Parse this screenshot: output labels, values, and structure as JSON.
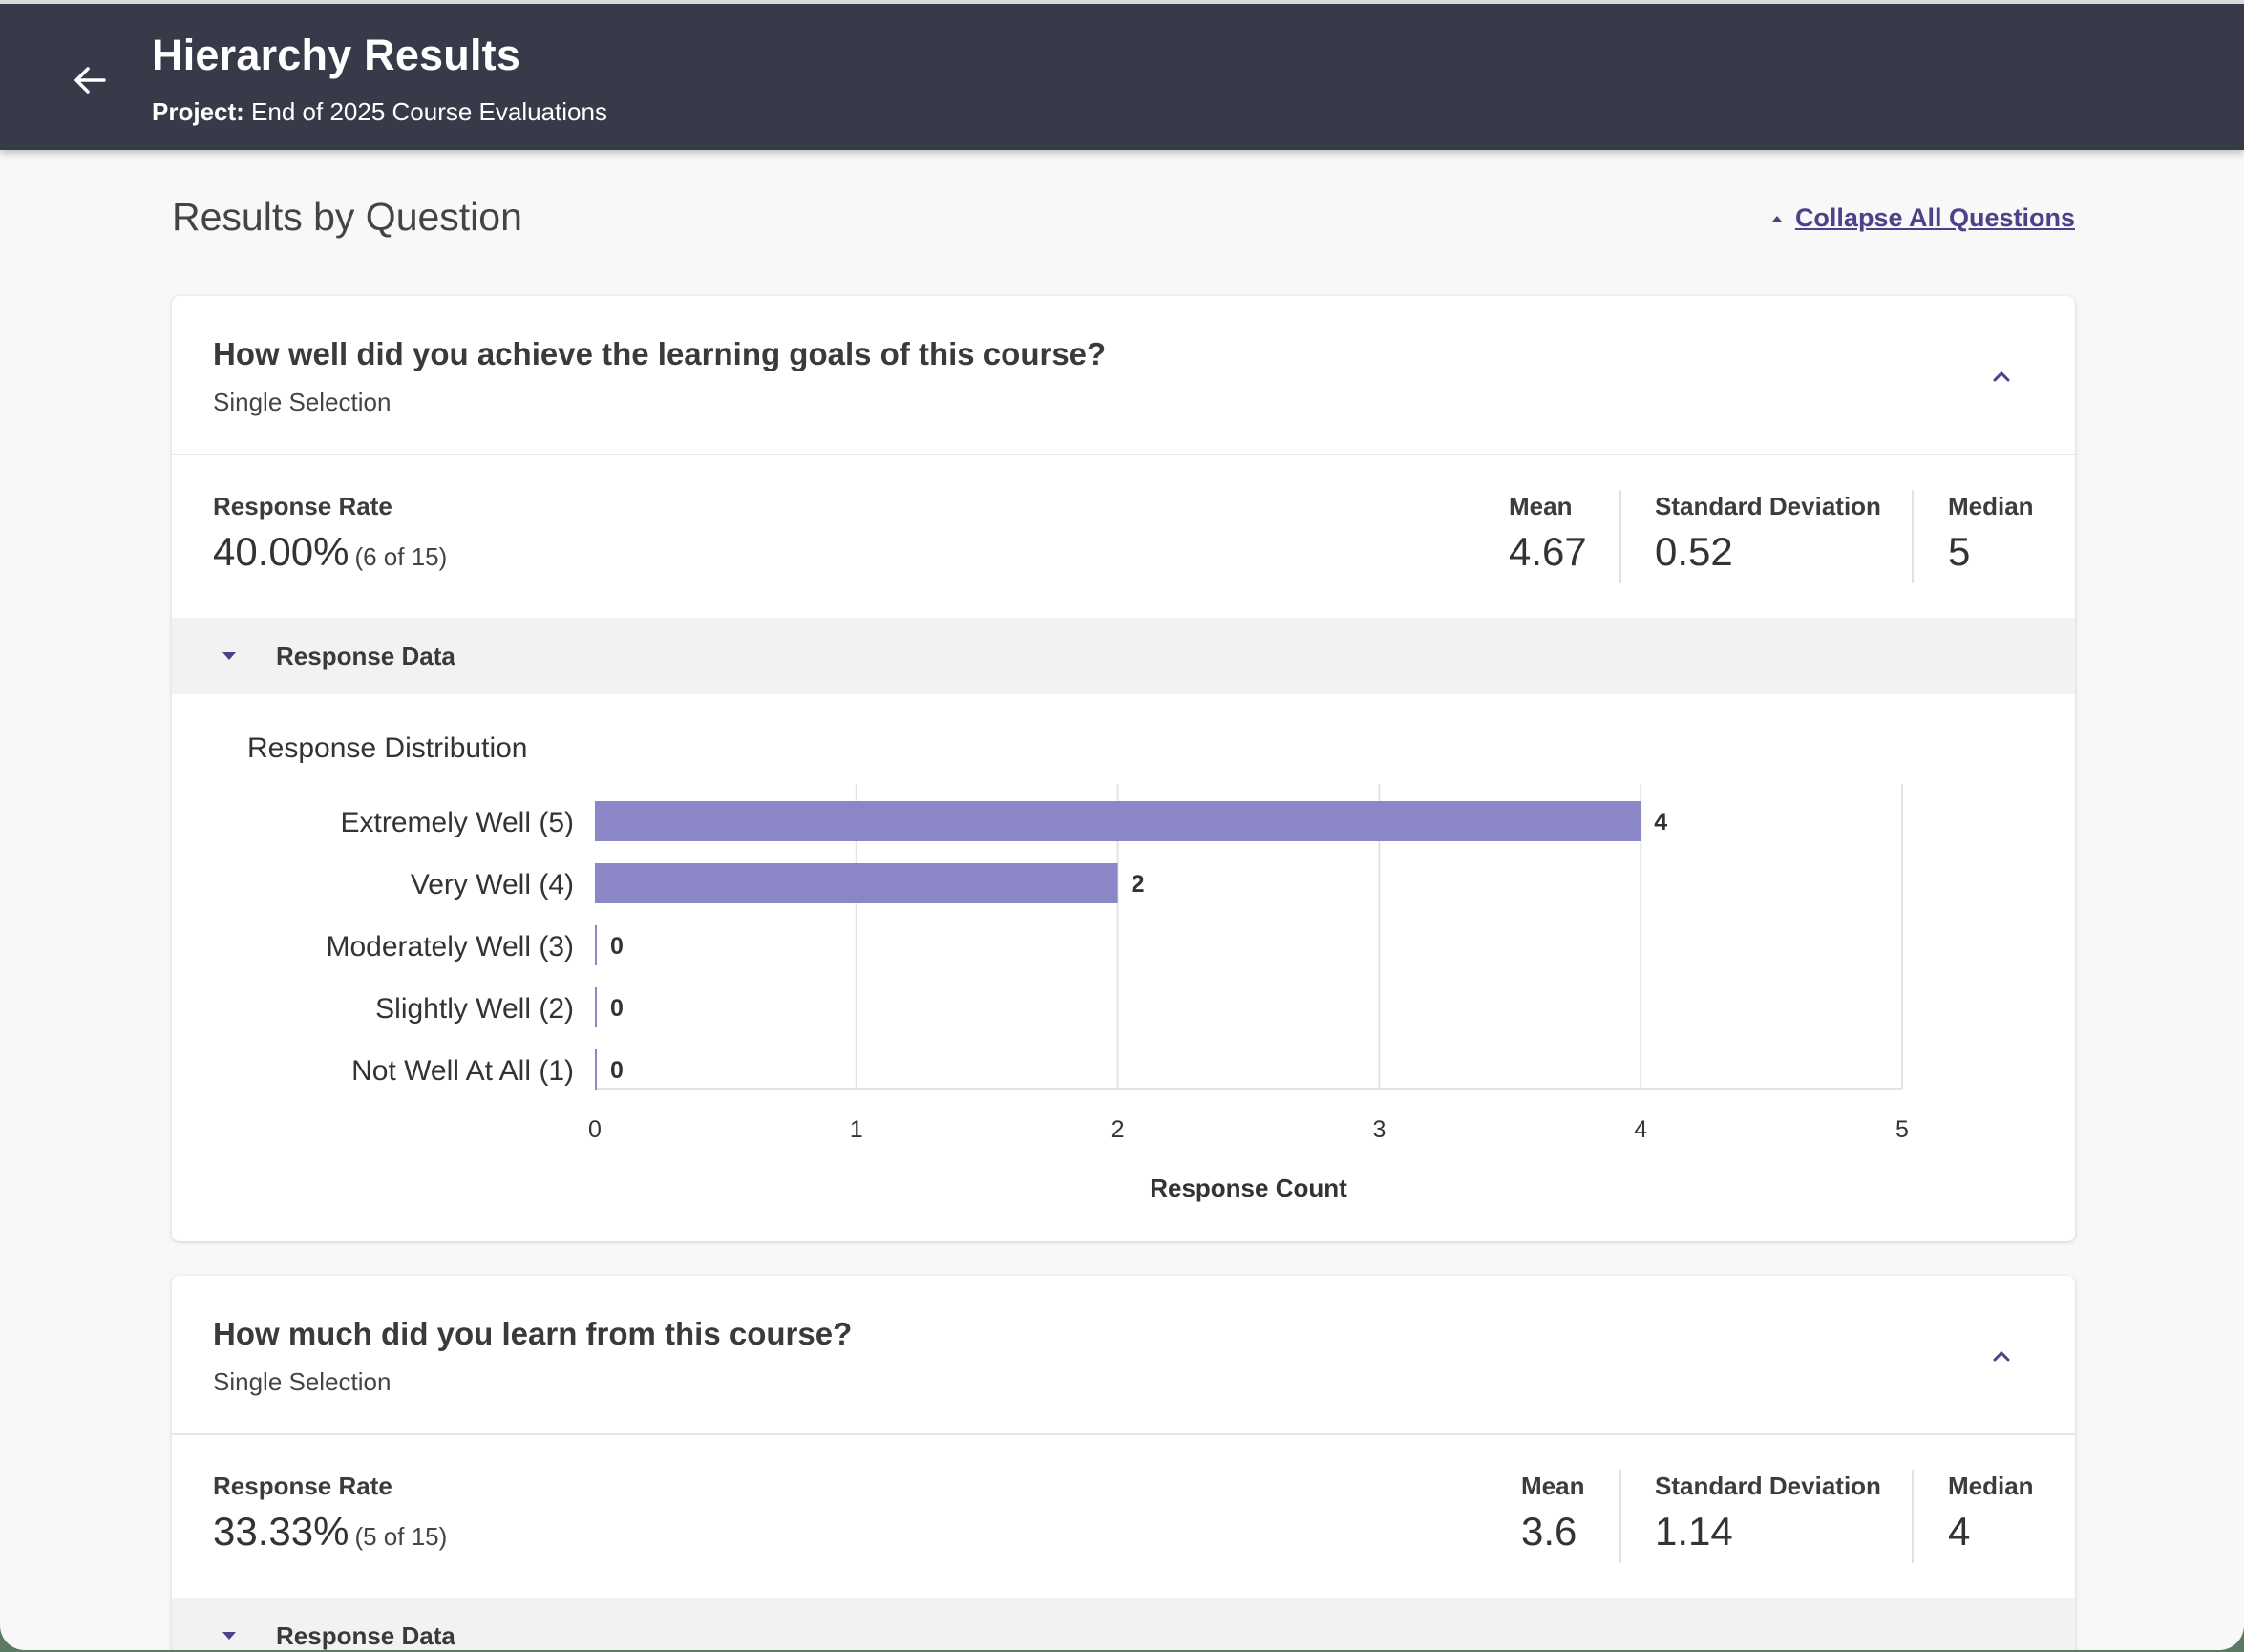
{
  "header": {
    "title": "Hierarchy Results",
    "project_label": "Project:",
    "project_name": "End of 2025 Course Evaluations"
  },
  "page": {
    "section_title": "Results by Question",
    "collapse_all": "Collapse All Questions"
  },
  "colors": {
    "header_bg": "#363a49",
    "accent": "#4a4389",
    "bar": "#8b86c6"
  },
  "questions": [
    {
      "title": "How well did you achieve the learning goals of this course?",
      "type": "Single Selection",
      "response_rate_label": "Response Rate",
      "response_rate": "40.00%",
      "response_fraction": "(6 of 15)",
      "mean_label": "Mean",
      "mean": "4.67",
      "sd_label": "Standard Deviation",
      "sd": "0.52",
      "median_label": "Median",
      "median": "5",
      "response_data_label": "Response Data",
      "chart_title": "Response Distribution"
    },
    {
      "title": "How much did you learn from this course?",
      "type": "Single Selection",
      "response_rate_label": "Response Rate",
      "response_rate": "33.33%",
      "response_fraction": "(5 of 15)",
      "mean_label": "Mean",
      "mean": "3.6",
      "sd_label": "Standard Deviation",
      "sd": "1.14",
      "median_label": "Median",
      "median": "4",
      "response_data_label": "Response Data"
    }
  ],
  "chart_data": {
    "type": "bar",
    "orientation": "horizontal",
    "title": "Response Distribution",
    "categories": [
      "Extremely Well (5)",
      "Very Well (4)",
      "Moderately Well (3)",
      "Slightly Well (2)",
      "Not Well At All (1)"
    ],
    "values": [
      4,
      2,
      0,
      0,
      0
    ],
    "xlabel": "Response Count",
    "ylabel": "",
    "xlim": [
      0,
      5
    ],
    "xticks": [
      0,
      1,
      2,
      3,
      4,
      5
    ],
    "grid": true,
    "legend": "none"
  }
}
